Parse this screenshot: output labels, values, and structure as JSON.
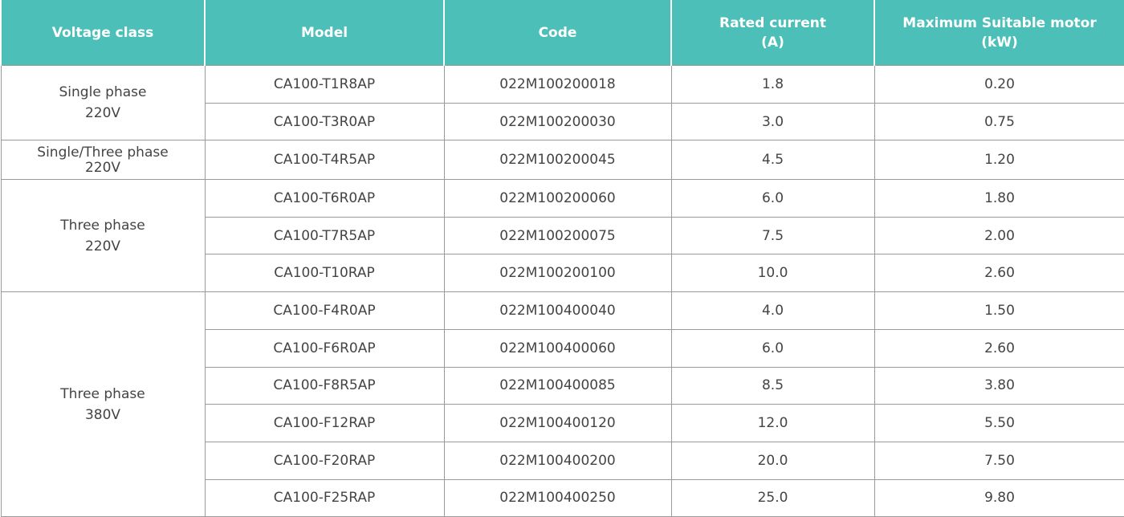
{
  "colors": {
    "header_bg": "#4dbfb9",
    "header_text": "#ffffff",
    "border": "#9a9a9a",
    "text": "#444444"
  },
  "headers": [
    "Voltage  class",
    "Model",
    "Code",
    "Rated current\n(A)",
    "Maximum Suitable motor\n(kW)"
  ],
  "groups": [
    {
      "voltage_class": [
        "Single phase",
        "220V"
      ],
      "rows": [
        [
          "CA100-T1R8AP",
          "022M100200018",
          "1.8",
          "0.20"
        ],
        [
          "CA100-T3R0AP",
          "022M100200030",
          "3.0",
          "0.75"
        ]
      ]
    },
    {
      "voltage_class": [
        "Single/Three phase",
        "220V"
      ],
      "rows": [
        [
          "CA100-T4R5AP",
          "022M100200045",
          "4.5",
          "1.20"
        ]
      ]
    },
    {
      "voltage_class": [
        "Three phase",
        "220V"
      ],
      "rows": [
        [
          "CA100-T6R0AP",
          "022M100200060",
          "6.0",
          "1.80"
        ],
        [
          "CA100-T7R5AP",
          "022M100200075",
          "7.5",
          "2.00"
        ],
        [
          "CA100-T10RAP",
          "022M100200100",
          "10.0",
          "2.60"
        ]
      ]
    },
    {
      "voltage_class": [
        "Three phase",
        "380V"
      ],
      "rows": [
        [
          "CA100-F4R0AP",
          "022M100400040",
          "4.0",
          "1.50"
        ],
        [
          "CA100-F6R0AP",
          "022M100400060",
          "6.0",
          "2.60"
        ],
        [
          "CA100-F8R5AP",
          "022M100400085",
          "8.5",
          "3.80"
        ],
        [
          "CA100-F12RAP",
          "022M100400120",
          "12.0",
          "5.50"
        ],
        [
          "CA100-F20RAP",
          "022M100400200",
          "20.0",
          "7.50"
        ],
        [
          "CA100-F25RAP",
          "022M100400250",
          "25.0",
          "9.80"
        ]
      ]
    }
  ]
}
